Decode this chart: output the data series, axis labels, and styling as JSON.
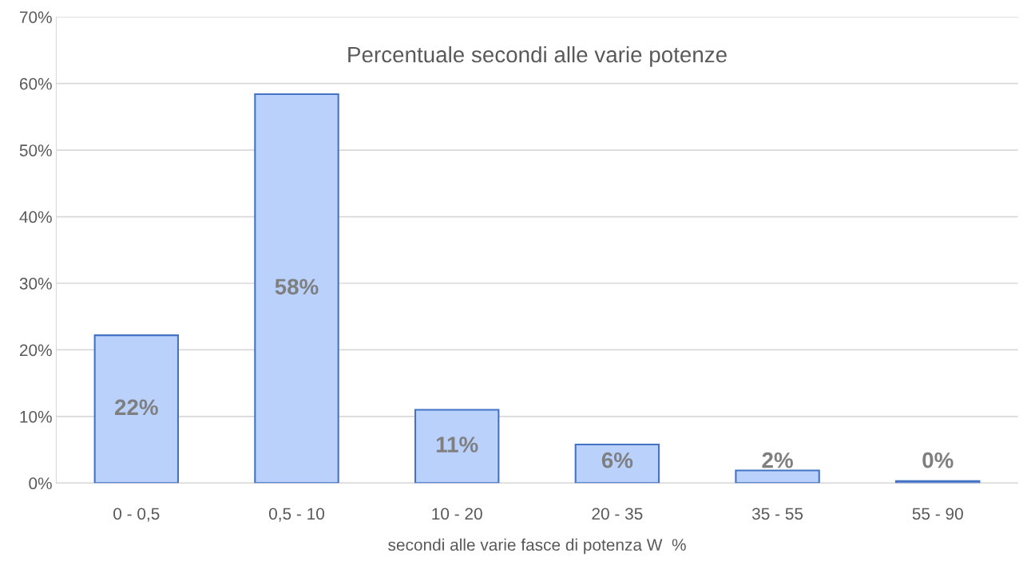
{
  "chart_data": {
    "type": "bar",
    "title": "Percentuale secondi alle varie potenze",
    "xlabel": "secondi alle varie fasce di potenza W  %",
    "categories": [
      "0 - 0,5",
      "0,5 - 10",
      "10 - 20",
      "20 - 35",
      "35 - 55",
      "55 - 90"
    ],
    "values": [
      22.2,
      58.4,
      11.0,
      5.8,
      1.9,
      0.3
    ],
    "value_labels": [
      "22%",
      "58%",
      "11%",
      "6%",
      "2%",
      "0%"
    ],
    "color": "#b9d1fb",
    "ylim": [
      0,
      70
    ],
    "yticks": [
      {
        "value": 0,
        "label": "0%"
      },
      {
        "value": 10,
        "label": "10%"
      },
      {
        "value": 20,
        "label": "20%"
      },
      {
        "value": 30,
        "label": "30%"
      },
      {
        "value": 40,
        "label": "40%"
      },
      {
        "value": 50,
        "label": "50%"
      },
      {
        "value": 60,
        "label": "60%"
      },
      {
        "value": 70,
        "label": "70%"
      }
    ],
    "grid": "y",
    "legend": false
  }
}
